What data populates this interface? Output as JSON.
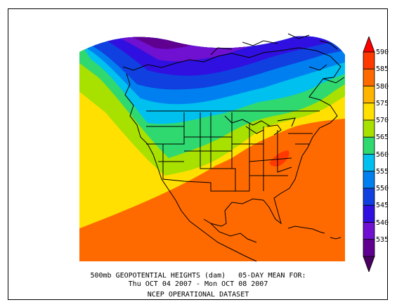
{
  "caption": {
    "line1": "500mb GEOPOTENTIAL HEIGHTS (dam)   05-DAY MEAN FOR:",
    "line2": "Thu OCT 04 2007 - Mon OCT 08 2007",
    "line3": "NCEP OPERATIONAL DATASET"
  },
  "colorbar": {
    "levels": [
      {
        "label": "590",
        "color": "#ff3a00"
      },
      {
        "label": "585",
        "color": "#ff6a00"
      },
      {
        "label": "580",
        "color": "#ffb400"
      },
      {
        "label": "575",
        "color": "#ffe000"
      },
      {
        "label": "570",
        "color": "#a8e000"
      },
      {
        "label": "565",
        "color": "#30d870"
      },
      {
        "label": "560",
        "color": "#00c0f0"
      },
      {
        "label": "555",
        "color": "#0080f0"
      },
      {
        "label": "550",
        "color": "#1040e0"
      },
      {
        "label": "545",
        "color": "#3010e0"
      },
      {
        "label": "540",
        "color": "#7010d0"
      },
      {
        "label": "535",
        "color": "#600090"
      }
    ],
    "top_color": "#ff0000",
    "bottom_color": "#4a0060"
  }
}
